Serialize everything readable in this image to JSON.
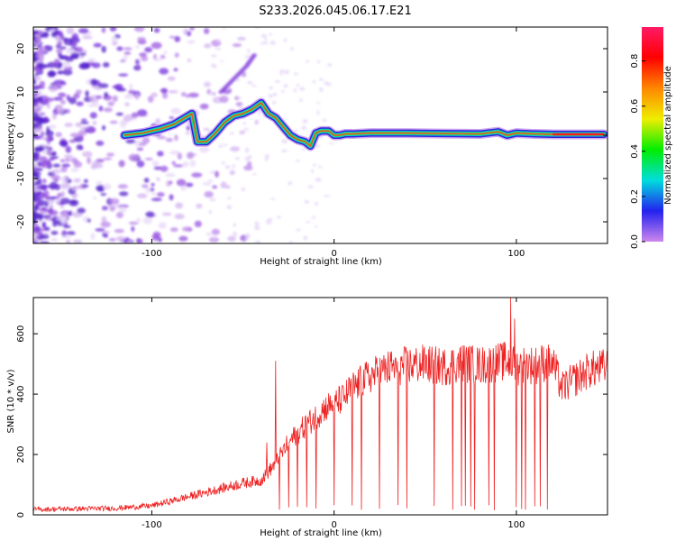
{
  "title": "S233.2026.045.06.17.E21",
  "chart_data": [
    {
      "type": "heatmap",
      "name": "spectrogram",
      "xlabel": "Height of straight line (km)",
      "ylabel": "Frequency (Hz)",
      "xlim": [
        -165,
        150
      ],
      "ylim": [
        -25,
        25
      ],
      "x_ticks": [
        -100,
        0,
        100
      ],
      "y_ticks": [
        -20,
        -10,
        0,
        10,
        20
      ],
      "ridge": {
        "description": "dominant frequency ridge (Hz) vs height (km)",
        "x": [
          -115,
          -105,
          -95,
          -88,
          -82,
          -78,
          -75,
          -70,
          -65,
          -60,
          -55,
          -50,
          -45,
          -40,
          -36,
          -32,
          -28,
          -24,
          -20,
          -16,
          -13,
          -10,
          -7,
          -3,
          0,
          3,
          6,
          10,
          20,
          40,
          60,
          80,
          90,
          95,
          100,
          110,
          120,
          130,
          140,
          148
        ],
        "y": [
          0,
          0.5,
          1.5,
          2.5,
          4,
          5,
          -1.5,
          -1.5,
          0.5,
          3,
          4.5,
          5,
          6,
          7.5,
          5,
          4,
          2,
          0,
          -1,
          -1.5,
          -2.5,
          0.5,
          1,
          1,
          0,
          0,
          0.3,
          0.3,
          0.5,
          0.5,
          0.4,
          0.3,
          0.8,
          0,
          0.5,
          0.3,
          0.2,
          0.2,
          0.2,
          0.2
        ]
      },
      "upper_streak": {
        "x": [
          -62,
          -55,
          -48,
          -43
        ],
        "y": [
          10,
          13,
          16,
          19
        ]
      }
    },
    {
      "type": "colorbar",
      "label": "Normalized spectral amplitude",
      "range": [
        0,
        0.95
      ],
      "ticks": [
        0.0,
        0.2,
        0.4,
        0.6,
        0.8
      ],
      "tick_labels": [
        "0.0",
        "0.2",
        "0.4",
        "0.6",
        "0.8"
      ],
      "colors": [
        "#cc88ee",
        "#2222ee",
        "#00dddd",
        "#00ee00",
        "#eeee00",
        "#ff8800",
        "#ff0000",
        "#ff1a66"
      ]
    },
    {
      "type": "line",
      "name": "snr",
      "xlabel": "Height of straight line (km)",
      "ylabel": "SNR (10 * v/v)",
      "xlim": [
        -165,
        150
      ],
      "ylim": [
        0,
        720
      ],
      "x_ticks": [
        -100,
        0,
        100
      ],
      "y_ticks": [
        0,
        200,
        400,
        600
      ],
      "color": "#ee2222",
      "envelope": {
        "x": [
          -165,
          -120,
          -100,
          -90,
          -80,
          -70,
          -60,
          -50,
          -45,
          -40,
          -35,
          -30,
          -25,
          -20,
          -15,
          -10,
          -5,
          0,
          5,
          10,
          20,
          30,
          40,
          50,
          60,
          70,
          80,
          90,
          95,
          100,
          105,
          110,
          115,
          120,
          125,
          130,
          135,
          140,
          150
        ],
        "y": [
          18,
          22,
          30,
          45,
          60,
          75,
          90,
          105,
          110,
          115,
          150,
          190,
          240,
          270,
          300,
          325,
          355,
          370,
          385,
          420,
          460,
          485,
          495,
          500,
          490,
          505,
          495,
          505,
          510,
          490,
          500,
          495,
          505,
          500,
          420,
          440,
          460,
          480,
          490
        ]
      },
      "spikes_down": [
        -30,
        -25,
        -20,
        -15,
        -10,
        0,
        10,
        15,
        25,
        35,
        40,
        55,
        65,
        70,
        72,
        75,
        77,
        85,
        88,
        100,
        103,
        105,
        110,
        113,
        117
      ],
      "spikes_up": [
        {
          "x": -32,
          "y": 510
        },
        {
          "x": -37,
          "y": 240
        },
        {
          "x": 97,
          "y": 720
        },
        {
          "x": 99,
          "y": 650
        }
      ]
    }
  ]
}
